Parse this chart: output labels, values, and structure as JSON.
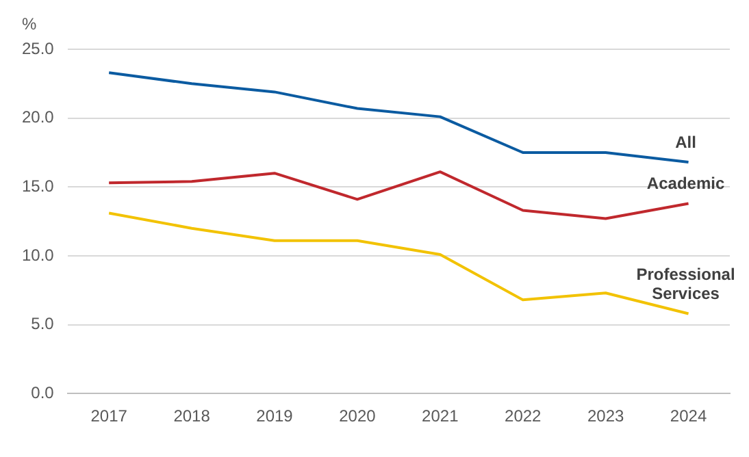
{
  "chart_data": {
    "type": "line",
    "ylabel": "%",
    "categories": [
      "2017",
      "2018",
      "2019",
      "2020",
      "2021",
      "2022",
      "2023",
      "2024"
    ],
    "series": [
      {
        "name": "All",
        "color": "#0b5ba1",
        "values": [
          23.3,
          22.5,
          21.9,
          20.7,
          20.1,
          17.5,
          17.5,
          16.8
        ]
      },
      {
        "name": "Academic",
        "color": "#c0282d",
        "values": [
          15.3,
          15.4,
          16.0,
          14.1,
          16.1,
          13.3,
          12.7,
          13.8
        ]
      },
      {
        "name": "Professional Services",
        "color": "#f2c200",
        "values": [
          13.1,
          12.0,
          11.1,
          11.1,
          10.1,
          6.8,
          7.3,
          5.8
        ]
      }
    ],
    "ylim": [
      0,
      25
    ],
    "yticks": [
      {
        "value": 0,
        "label": "0.0"
      },
      {
        "value": 5,
        "label": "5.0"
      },
      {
        "value": 10,
        "label": "10.0"
      },
      {
        "value": 15,
        "label": "15.0"
      },
      {
        "value": 20,
        "label": "20.0"
      },
      {
        "value": 25,
        "label": "25.0"
      }
    ],
    "grid": "y",
    "legend": false,
    "marker": "none",
    "line_style": "solid"
  }
}
